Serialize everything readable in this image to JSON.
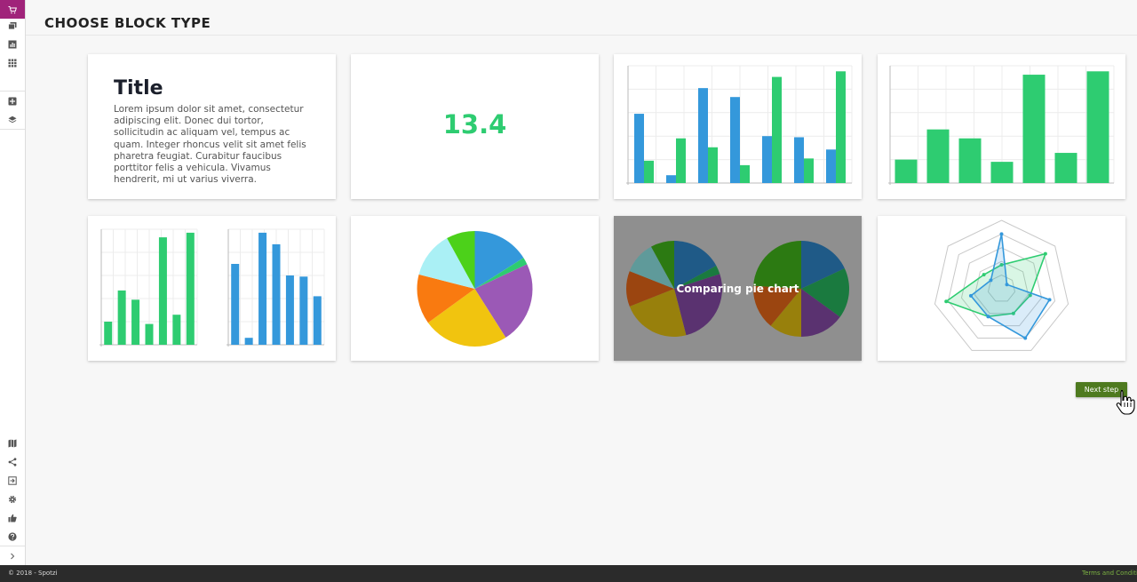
{
  "header": {
    "title": "CHOOSE BLOCK TYPE"
  },
  "sidebar": {
    "top_items": [
      {
        "name": "cart-icon"
      },
      {
        "name": "gallery-icon"
      },
      {
        "name": "chart-icon"
      },
      {
        "name": "grid-icon"
      }
    ],
    "mid_items": [
      {
        "name": "add-box-icon"
      },
      {
        "name": "layers-icon"
      }
    ],
    "bottom_items": [
      {
        "name": "map-icon"
      },
      {
        "name": "share-icon"
      },
      {
        "name": "exit-icon"
      },
      {
        "name": "gear-icon"
      },
      {
        "name": "thumbs-up-icon"
      },
      {
        "name": "help-icon"
      },
      {
        "name": "chevron-right-icon"
      }
    ],
    "active_color": "#a0237a"
  },
  "blocks": {
    "text": {
      "title": "Title",
      "body": "Lorem ipsum dolor sit amet, consectetur adipiscing elit. Donec dui tortor, sollicitudin ac aliquam vel, tempus ac quam. Integer rhoncus velit sit amet felis pharetra feugiat. Curabitur faucibus porttitor felis a vehicula. Vivamus hendrerit, mi ut varius viverra."
    },
    "number": {
      "value": "13.4",
      "color": "#2ecc71"
    },
    "comparing_pie": {
      "label": "Comparing pie chart"
    }
  },
  "chart_data": [
    {
      "type": "bar",
      "name": "grouped-bar-preview",
      "series": [
        {
          "color": "#3498db",
          "values": [
            6.2,
            0.7,
            8.5,
            7.7,
            4.2,
            4.1,
            3.0
          ]
        },
        {
          "color": "#2ecc71",
          "values": [
            2.0,
            4.0,
            3.2,
            1.6,
            9.5,
            2.2,
            10.0
          ]
        }
      ],
      "ylim": [
        0,
        10.5
      ]
    },
    {
      "type": "bar",
      "name": "single-bar-preview",
      "series": [
        {
          "color": "#2ecc71",
          "values": [
            2.1,
            4.8,
            4.0,
            1.9,
            9.7,
            2.7,
            10.0
          ]
        }
      ],
      "ylim": [
        0,
        10.5
      ]
    },
    {
      "type": "bar",
      "name": "small-green-bars-preview",
      "series": [
        {
          "color": "#2ecc71",
          "values": [
            2.0,
            4.7,
            3.9,
            1.8,
            9.3,
            2.6,
            9.7
          ]
        }
      ],
      "ylim": [
        0,
        10
      ]
    },
    {
      "type": "bar",
      "name": "small-blue-bars-preview",
      "series": [
        {
          "color": "#3498db",
          "values": [
            7.0,
            0.6,
            9.7,
            8.7,
            6.0,
            5.9,
            4.2
          ]
        }
      ],
      "ylim": [
        0,
        10
      ]
    },
    {
      "type": "pie",
      "name": "pie-preview",
      "slices": [
        {
          "value": 16,
          "color": "#3498db"
        },
        {
          "value": 2,
          "color": "#2ecc71"
        },
        {
          "value": 23,
          "color": "#9b59b6"
        },
        {
          "value": 24,
          "color": "#f1c40f"
        },
        {
          "value": 14,
          "color": "#f97a10"
        },
        {
          "value": 13,
          "color": "#aaf0f5"
        },
        {
          "value": 8,
          "color": "#4cd11a"
        }
      ]
    },
    {
      "type": "pie",
      "name": "compare-pie-left",
      "slices": [
        {
          "value": 17,
          "color": "#1f5a87"
        },
        {
          "value": 3,
          "color": "#1a7a3f"
        },
        {
          "value": 26,
          "color": "#5a3270"
        },
        {
          "value": 23,
          "color": "#98800c"
        },
        {
          "value": 12,
          "color": "#9b4510"
        },
        {
          "value": 11,
          "color": "#5f9a9a"
        },
        {
          "value": 8,
          "color": "#2c7a12"
        }
      ]
    },
    {
      "type": "pie",
      "name": "compare-pie-right",
      "slices": [
        {
          "value": 18,
          "color": "#1f5a87"
        },
        {
          "value": 17,
          "color": "#1a7a3f"
        },
        {
          "value": 15,
          "color": "#5a3270"
        },
        {
          "value": 11,
          "color": "#98800c"
        },
        {
          "value": 15,
          "color": "#9b4510"
        },
        {
          "value": 24,
          "color": "#2c7a12"
        }
      ]
    },
    {
      "type": "radar",
      "name": "radar-preview",
      "axes": 7,
      "max": 10,
      "series": [
        {
          "color": "#2ecc71",
          "values": [
            3.5,
            8.2,
            4.3,
            4.0,
            4.5,
            8.3,
            3.3
          ]
        },
        {
          "color": "#3498db",
          "values": [
            8.0,
            1.0,
            7.2,
            8.0,
            4.5,
            4.6,
            2.0
          ]
        }
      ]
    }
  ],
  "actions": {
    "next_step": "Next step"
  },
  "footer": {
    "copyright": "© 2018 - Spotzi",
    "terms": "Terms and Conditions"
  }
}
